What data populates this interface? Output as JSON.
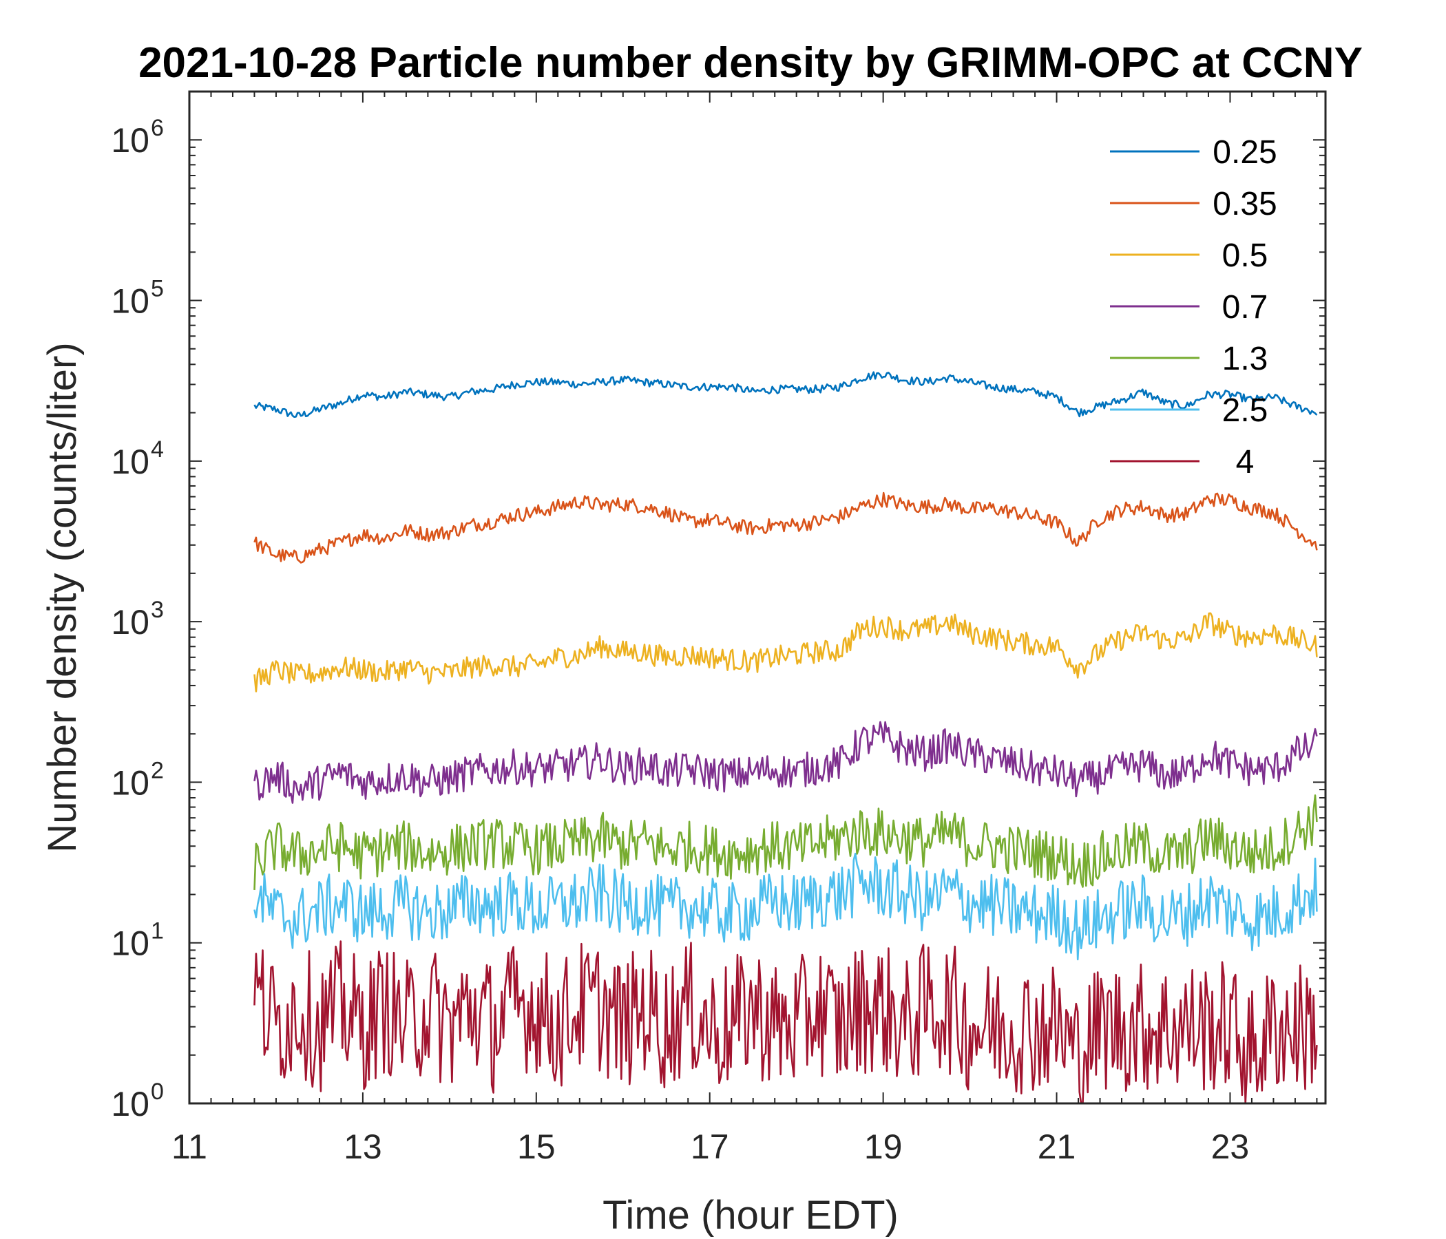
{
  "chart_data": {
    "type": "line",
    "title": "2021-10-28 Particle number density by GRIMM-OPC at CCNY",
    "xlabel": "Time (hour EDT)",
    "ylabel": "Number density (counts/liter)",
    "xlim": [
      11,
      24.1
    ],
    "ylim": [
      1,
      2000000
    ],
    "yscale": "log",
    "xticks": [
      11,
      13,
      15,
      17,
      19,
      21,
      23
    ],
    "yticks": [
      {
        "base": "10",
        "exp": "0",
        "value": 1
      },
      {
        "base": "10",
        "exp": "1",
        "value": 10
      },
      {
        "base": "10",
        "exp": "2",
        "value": 100
      },
      {
        "base": "10",
        "exp": "3",
        "value": 1000
      },
      {
        "base": "10",
        "exp": "4",
        "value": 10000
      },
      {
        "base": "10",
        "exp": "5",
        "value": 100000
      },
      {
        "base": "10",
        "exp": "6",
        "value": 1000000
      }
    ],
    "legend_position": "top-right",
    "x": [
      11.75,
      12.0,
      12.25,
      12.5,
      12.75,
      13.0,
      13.25,
      13.5,
      13.75,
      14.0,
      14.25,
      14.5,
      14.75,
      15.0,
      15.25,
      15.5,
      15.75,
      16.0,
      16.25,
      16.5,
      16.75,
      17.0,
      17.25,
      17.5,
      17.75,
      18.0,
      18.25,
      18.5,
      18.75,
      19.0,
      19.25,
      19.5,
      19.75,
      20.0,
      20.25,
      20.5,
      20.75,
      21.0,
      21.25,
      21.5,
      21.75,
      22.0,
      22.25,
      22.5,
      22.75,
      23.0,
      23.25,
      23.5,
      23.75,
      24.0
    ],
    "series": [
      {
        "name": "0.25",
        "color": "#0072BD",
        "values": [
          22000,
          21000,
          19000,
          21000,
          23000,
          26000,
          25000,
          27000,
          26000,
          25000,
          27000,
          28000,
          30000,
          31000,
          31000,
          30000,
          31000,
          32000,
          31000,
          30000,
          29000,
          29000,
          29000,
          27000,
          28000,
          28000,
          28000,
          29000,
          33000,
          35000,
          32000,
          31000,
          33000,
          31000,
          29000,
          28000,
          27000,
          25000,
          20000,
          22000,
          24000,
          27000,
          23000,
          22000,
          26000,
          26000,
          24000,
          25000,
          22000,
          20000
        ]
      },
      {
        "name": "0.35",
        "color": "#D95319",
        "values": [
          3100,
          2600,
          2500,
          2800,
          3100,
          3500,
          3300,
          3700,
          3500,
          3600,
          4000,
          4200,
          4600,
          4800,
          5200,
          5600,
          5300,
          5400,
          5200,
          4800,
          4200,
          4300,
          4000,
          3800,
          4000,
          4000,
          4200,
          4500,
          5200,
          5800,
          5300,
          5200,
          5400,
          5000,
          5100,
          4800,
          4500,
          4100,
          3100,
          4400,
          5000,
          5200,
          4600,
          4700,
          5800,
          5700,
          5100,
          4800,
          3800,
          3000
        ]
      },
      {
        "name": "0.5",
        "color": "#EDB120",
        "values": [
          420,
          500,
          460,
          480,
          520,
          500,
          480,
          520,
          480,
          480,
          520,
          540,
          520,
          540,
          600,
          620,
          700,
          650,
          640,
          600,
          620,
          600,
          580,
          560,
          600,
          620,
          650,
          660,
          900,
          950,
          880,
          900,
          1000,
          850,
          800,
          750,
          720,
          700,
          520,
          650,
          780,
          850,
          760,
          780,
          1000,
          850,
          800,
          850,
          780,
          700
        ]
      },
      {
        "name": "0.7",
        "color": "#7E2F8E",
        "values": [
          95,
          110,
          90,
          100,
          115,
          100,
          105,
          110,
          100,
          105,
          115,
          120,
          125,
          120,
          125,
          130,
          140,
          120,
          130,
          115,
          120,
          115,
          110,
          115,
          120,
          115,
          125,
          130,
          180,
          190,
          160,
          150,
          170,
          150,
          140,
          130,
          120,
          115,
          100,
          110,
          120,
          130,
          110,
          115,
          150,
          130,
          120,
          120,
          150,
          170
        ]
      },
      {
        "name": "1.3",
        "color": "#77AC30",
        "values": [
          30,
          40,
          35,
          38,
          40,
          35,
          38,
          40,
          36,
          38,
          40,
          42,
          40,
          38,
          40,
          42,
          45,
          40,
          42,
          38,
          40,
          38,
          36,
          38,
          40,
          38,
          42,
          45,
          50,
          48,
          45,
          42,
          48,
          42,
          40,
          38,
          36,
          35,
          30,
          34,
          38,
          40,
          35,
          36,
          45,
          40,
          36,
          38,
          48,
          60
        ]
      },
      {
        "name": "2.5",
        "color": "#4DBEEE",
        "values": [
          20,
          15,
          14,
          16,
          18,
          15,
          16,
          17,
          15,
          16,
          18,
          17,
          18,
          16,
          17,
          18,
          20,
          17,
          18,
          16,
          17,
          16,
          15,
          16,
          18,
          17,
          19,
          20,
          24,
          22,
          20,
          18,
          21,
          18,
          17,
          16,
          15,
          15,
          12,
          14,
          16,
          17,
          14,
          15,
          19,
          16,
          14,
          15,
          18,
          22
        ]
      },
      {
        "name": "4",
        "color": "#A2142F",
        "values": [
          5,
          3,
          4,
          3,
          4,
          3,
          4,
          3,
          4,
          3,
          4,
          3,
          4,
          4,
          3,
          4,
          4,
          3,
          4,
          3,
          4,
          3,
          3,
          4,
          3,
          3,
          4,
          3,
          4,
          4,
          3,
          4,
          4,
          3,
          3,
          3,
          3,
          3,
          2,
          3,
          3,
          3,
          3,
          3,
          3,
          3,
          2,
          3,
          3,
          3
        ]
      }
    ]
  }
}
